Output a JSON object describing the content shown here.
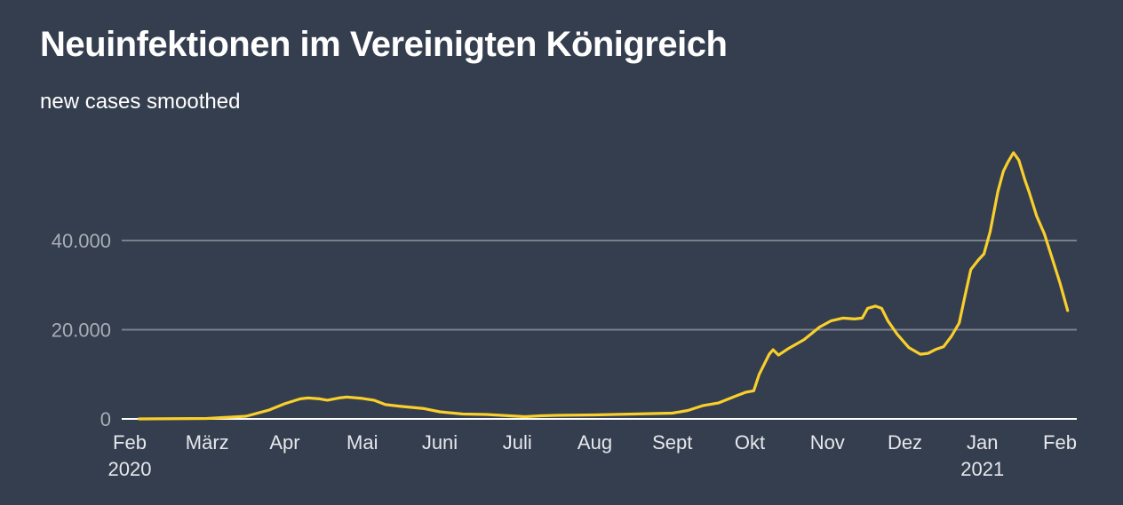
{
  "chart_data": {
    "type": "line",
    "title": "Neuinfektionen im Vereinigten Königreich",
    "subtitle": "new cases smoothed",
    "xlabel": "",
    "ylabel": "",
    "ylim": [
      0,
      60000
    ],
    "xlim_months_since_feb_2020": [
      0,
      12
    ],
    "grid": true,
    "y_ticks": [
      {
        "value": 0,
        "label": "0"
      },
      {
        "value": 20000,
        "label": "20.000"
      },
      {
        "value": 40000,
        "label": "40.000"
      }
    ],
    "x_ticks": [
      {
        "m": 0,
        "label": "Feb",
        "sub": "2020"
      },
      {
        "m": 1,
        "label": "März"
      },
      {
        "m": 2,
        "label": "Apr"
      },
      {
        "m": 3,
        "label": "Mai"
      },
      {
        "m": 4,
        "label": "Juni"
      },
      {
        "m": 5,
        "label": "Juli"
      },
      {
        "m": 6,
        "label": "Aug"
      },
      {
        "m": 7,
        "label": "Sept"
      },
      {
        "m": 8,
        "label": "Okt"
      },
      {
        "m": 9,
        "label": "Nov"
      },
      {
        "m": 10,
        "label": "Dez"
      },
      {
        "m": 11,
        "label": "Jan",
        "sub": "2021"
      },
      {
        "m": 12,
        "label": "Feb"
      }
    ],
    "series": [
      {
        "name": "new cases smoothed",
        "color": "#f9cf2b",
        "points": [
          [
            0.12,
            0
          ],
          [
            1.0,
            100
          ],
          [
            1.5,
            600
          ],
          [
            1.8,
            2000
          ],
          [
            2.0,
            3400
          ],
          [
            2.2,
            4500
          ],
          [
            2.3,
            4700
          ],
          [
            2.45,
            4500
          ],
          [
            2.55,
            4200
          ],
          [
            2.7,
            4700
          ],
          [
            2.8,
            4900
          ],
          [
            3.0,
            4600
          ],
          [
            3.15,
            4200
          ],
          [
            3.3,
            3200
          ],
          [
            3.5,
            2800
          ],
          [
            3.8,
            2300
          ],
          [
            4.0,
            1600
          ],
          [
            4.3,
            1100
          ],
          [
            4.6,
            1000
          ],
          [
            4.9,
            700
          ],
          [
            5.1,
            500
          ],
          [
            5.3,
            700
          ],
          [
            5.5,
            800
          ],
          [
            6.0,
            900
          ],
          [
            6.5,
            1100
          ],
          [
            7.0,
            1300
          ],
          [
            7.2,
            1900
          ],
          [
            7.4,
            3000
          ],
          [
            7.6,
            3600
          ],
          [
            7.8,
            5000
          ],
          [
            7.95,
            6000
          ],
          [
            8.05,
            6300
          ],
          [
            8.12,
            10000
          ],
          [
            8.25,
            14500
          ],
          [
            8.3,
            15500
          ],
          [
            8.37,
            14300
          ],
          [
            8.5,
            15800
          ],
          [
            8.7,
            17800
          ],
          [
            8.9,
            20600
          ],
          [
            9.05,
            22000
          ],
          [
            9.2,
            22600
          ],
          [
            9.35,
            22400
          ],
          [
            9.45,
            22600
          ],
          [
            9.52,
            24800
          ],
          [
            9.62,
            25300
          ],
          [
            9.7,
            24800
          ],
          [
            9.78,
            22000
          ],
          [
            9.9,
            19000
          ],
          [
            10.05,
            16000
          ],
          [
            10.2,
            14500
          ],
          [
            10.3,
            14700
          ],
          [
            10.4,
            15600
          ],
          [
            10.5,
            16200
          ],
          [
            10.6,
            18500
          ],
          [
            10.7,
            21500
          ],
          [
            10.78,
            28000
          ],
          [
            10.85,
            33500
          ],
          [
            10.95,
            35700
          ],
          [
            11.02,
            37000
          ],
          [
            11.1,
            42000
          ],
          [
            11.2,
            51000
          ],
          [
            11.27,
            55500
          ],
          [
            11.33,
            57600
          ],
          [
            11.4,
            59700
          ],
          [
            11.47,
            58000
          ],
          [
            11.55,
            53500
          ],
          [
            11.6,
            51000
          ],
          [
            11.7,
            45500
          ],
          [
            11.8,
            41500
          ],
          [
            11.9,
            36000
          ],
          [
            12.0,
            30500
          ],
          [
            12.1,
            24300
          ]
        ]
      }
    ]
  }
}
